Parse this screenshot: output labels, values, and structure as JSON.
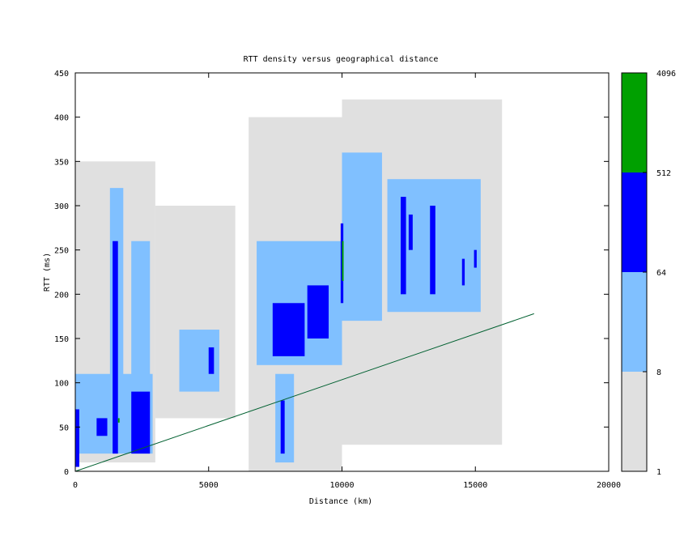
{
  "chart_data": {
    "type": "heatmap",
    "title": "RTT density versus geographical distance",
    "xlabel": "Distance (km)",
    "ylabel": "RTT (ms)",
    "xlim": [
      0,
      20000
    ],
    "ylim": [
      0,
      450
    ],
    "x_ticks": [
      0,
      5000,
      10000,
      15000,
      20000
    ],
    "y_ticks": [
      0,
      50,
      100,
      150,
      200,
      250,
      300,
      350,
      400,
      450
    ],
    "colorbar": {
      "scale": "log",
      "ticks": [
        1,
        8,
        64,
        512,
        4096
      ],
      "bands": [
        {
          "from": 1,
          "to": 8,
          "color": "#e0e0e0"
        },
        {
          "from": 8,
          "to": 64,
          "color": "#80c0ff"
        },
        {
          "from": 64,
          "to": 512,
          "color": "#0000ff"
        },
        {
          "from": 512,
          "to": 4096,
          "color": "#00a000"
        }
      ]
    },
    "reference_line": {
      "color": "#006030",
      "points": [
        [
          0,
          0
        ],
        [
          17200,
          178
        ]
      ]
    },
    "density_regions": [
      {
        "level": 1,
        "x": [
          0,
          3000
        ],
        "y": [
          10,
          350
        ]
      },
      {
        "level": 1,
        "x": [
          3000,
          6000
        ],
        "y": [
          60,
          300
        ]
      },
      {
        "level": 1,
        "x": [
          6500,
          10000
        ],
        "y": [
          0,
          400
        ]
      },
      {
        "level": 1,
        "x": [
          10000,
          16000
        ],
        "y": [
          30,
          420
        ]
      },
      {
        "level": 2,
        "x": [
          0,
          2900
        ],
        "y": [
          20,
          110
        ]
      },
      {
        "level": 2,
        "x": [
          1300,
          1800
        ],
        "y": [
          100,
          320
        ]
      },
      {
        "level": 2,
        "x": [
          2100,
          2800
        ],
        "y": [
          90,
          260
        ]
      },
      {
        "level": 2,
        "x": [
          3900,
          5400
        ],
        "y": [
          90,
          160
        ]
      },
      {
        "level": 2,
        "x": [
          6800,
          10000
        ],
        "y": [
          120,
          260
        ]
      },
      {
        "level": 2,
        "x": [
          7500,
          8200
        ],
        "y": [
          10,
          110
        ]
      },
      {
        "level": 2,
        "x": [
          10000,
          11500
        ],
        "y": [
          170,
          360
        ]
      },
      {
        "level": 2,
        "x": [
          11700,
          15200
        ],
        "y": [
          180,
          330
        ]
      },
      {
        "level": 3,
        "x": [
          0,
          150
        ],
        "y": [
          5,
          70
        ]
      },
      {
        "level": 3,
        "x": [
          800,
          1200
        ],
        "y": [
          40,
          60
        ]
      },
      {
        "level": 3,
        "x": [
          1400,
          1600
        ],
        "y": [
          20,
          260
        ]
      },
      {
        "level": 3,
        "x": [
          2100,
          2800
        ],
        "y": [
          20,
          90
        ]
      },
      {
        "level": 3,
        "x": [
          5000,
          5200
        ],
        "y": [
          110,
          140
        ]
      },
      {
        "level": 3,
        "x": [
          7400,
          8600
        ],
        "y": [
          130,
          190
        ]
      },
      {
        "level": 3,
        "x": [
          8700,
          9500
        ],
        "y": [
          150,
          210
        ]
      },
      {
        "level": 3,
        "x": [
          7700,
          7850
        ],
        "y": [
          20,
          80
        ]
      },
      {
        "level": 3,
        "x": [
          9950,
          10050
        ],
        "y": [
          190,
          280
        ]
      },
      {
        "level": 3,
        "x": [
          12200,
          12400
        ],
        "y": [
          200,
          310
        ]
      },
      {
        "level": 3,
        "x": [
          12500,
          12650
        ],
        "y": [
          250,
          290
        ]
      },
      {
        "level": 3,
        "x": [
          13300,
          13500
        ],
        "y": [
          200,
          300
        ]
      },
      {
        "level": 3,
        "x": [
          14500,
          14600
        ],
        "y": [
          210,
          240
        ]
      },
      {
        "level": 3,
        "x": [
          14950,
          15050
        ],
        "y": [
          230,
          250
        ]
      },
      {
        "level": 4,
        "x": [
          10000,
          10060
        ],
        "y": [
          215,
          260
        ]
      },
      {
        "level": 4,
        "x": [
          1600,
          1650
        ],
        "y": [
          55,
          60
        ]
      }
    ]
  }
}
